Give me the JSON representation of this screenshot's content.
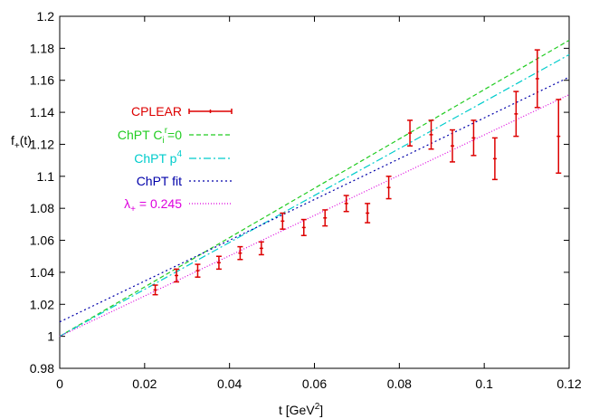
{
  "chart_data": {
    "type": "line",
    "title": "",
    "xlabel": "t [GeV",
    "xlabel_sup": "2",
    "xlabel_end": "]",
    "ylabel": "f",
    "ylabel_sub": "+",
    "ylabel_end": "(t)",
    "xlim": [
      0,
      0.12
    ],
    "ylim": [
      0.98,
      1.2
    ],
    "xticks": [
      0,
      0.02,
      0.04,
      0.06,
      0.08,
      0.1,
      0.12
    ],
    "xtick_labels": [
      "0",
      "0.02",
      "0.04",
      "0.06",
      "0.08",
      "0.1",
      "0.12"
    ],
    "yticks": [
      0.98,
      1,
      1.02,
      1.04,
      1.06,
      1.08,
      1.1,
      1.12,
      1.14,
      1.16,
      1.18,
      1.2
    ],
    "ytick_labels": [
      "0.98",
      "1",
      "1.02",
      "1.04",
      "1.06",
      "1.08",
      "1.1",
      "1.12",
      "1.14",
      "1.16",
      "1.18",
      "1.2"
    ],
    "grid": false,
    "legend_position": "left-middle",
    "series": [
      {
        "name": "CPLEAR",
        "kind": "errorbar",
        "color": "#dd0000",
        "points": [
          {
            "x": 0.0225,
            "y": 1.029,
            "err": 0.003
          },
          {
            "x": 0.0275,
            "y": 1.038,
            "err": 0.004
          },
          {
            "x": 0.0325,
            "y": 1.041,
            "err": 0.004
          },
          {
            "x": 0.0375,
            "y": 1.046,
            "err": 0.004
          },
          {
            "x": 0.0425,
            "y": 1.052,
            "err": 0.004
          },
          {
            "x": 0.0475,
            "y": 1.055,
            "err": 0.004
          },
          {
            "x": 0.0525,
            "y": 1.072,
            "err": 0.005
          },
          {
            "x": 0.0575,
            "y": 1.068,
            "err": 0.005
          },
          {
            "x": 0.0625,
            "y": 1.074,
            "err": 0.005
          },
          {
            "x": 0.0675,
            "y": 1.083,
            "err": 0.005
          },
          {
            "x": 0.0725,
            "y": 1.077,
            "err": 0.006
          },
          {
            "x": 0.0775,
            "y": 1.093,
            "err": 0.007
          },
          {
            "x": 0.0825,
            "y": 1.127,
            "err": 0.008
          },
          {
            "x": 0.0875,
            "y": 1.126,
            "err": 0.009
          },
          {
            "x": 0.0925,
            "y": 1.119,
            "err": 0.01
          },
          {
            "x": 0.0975,
            "y": 1.124,
            "err": 0.011
          },
          {
            "x": 0.1025,
            "y": 1.111,
            "err": 0.013
          },
          {
            "x": 0.1075,
            "y": 1.139,
            "err": 0.014
          },
          {
            "x": 0.1125,
            "y": 1.161,
            "err": 0.018
          },
          {
            "x": 0.1175,
            "y": 1.125,
            "err": 0.023
          }
        ]
      },
      {
        "name": "ChPT C",
        "name_sub": "i",
        "name_sup": "r",
        "name_end": "=0",
        "kind": "line",
        "color": "#22cc22",
        "dash": "5,3",
        "x": [
          0,
          0.12
        ],
        "y": [
          1.0,
          1.185
        ]
      },
      {
        "name": "ChPT p",
        "name_sup": "4",
        "kind": "line",
        "color": "#00cccc",
        "dash": "8,3,2,3",
        "x": [
          0,
          0.12
        ],
        "y": [
          1.0,
          1.176
        ]
      },
      {
        "name": "ChPT fit",
        "kind": "line",
        "color": "#0000aa",
        "dash": "2,3",
        "x": [
          0,
          0.12
        ],
        "y": [
          1.009,
          1.162
        ]
      },
      {
        "name": "λ",
        "name_sub": "+",
        "name_end": " = 0.245",
        "kind": "line",
        "color": "#dd00dd",
        "dash": "1,2",
        "x": [
          0,
          0.12
        ],
        "y": [
          1.0,
          1.151
        ]
      }
    ]
  }
}
